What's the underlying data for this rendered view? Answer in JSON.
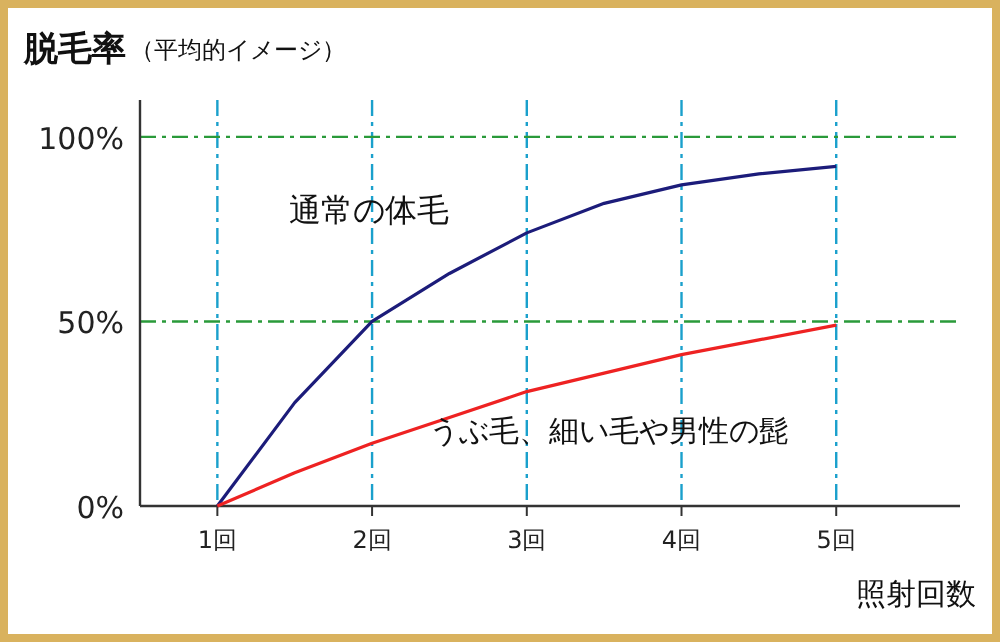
{
  "chart_data": {
    "type": "line",
    "ylabel": "脱毛率",
    "xlabel": "照射回数",
    "annotations": [
      "（平均的イメージ）"
    ],
    "xlim": [
      0.5,
      5.8
    ],
    "ylim": [
      0,
      110
    ],
    "xticks": [
      {
        "value": 1,
        "label": "1回"
      },
      {
        "value": 2,
        "label": "2回"
      },
      {
        "value": 3,
        "label": "3回"
      },
      {
        "value": 4,
        "label": "4回"
      },
      {
        "value": 5,
        "label": "5回"
      }
    ],
    "yticks": [
      {
        "value": 0,
        "label": "0%"
      },
      {
        "value": 50,
        "label": "50%"
      },
      {
        "value": 100,
        "label": "100%"
      }
    ],
    "grid": true,
    "legend": false,
    "marker": "none",
    "line_style": "solid",
    "x": [
      1,
      1.5,
      2,
      2.5,
      3,
      3.5,
      4,
      4.5,
      5
    ],
    "series": [
      {
        "name": "通常の体毛",
        "color": "#1c1c7a",
        "values": [
          0,
          28,
          50,
          63,
          74,
          82,
          87,
          90,
          92
        ]
      },
      {
        "name": "うぶ毛、細い毛や男性の髭",
        "color": "#ee2222",
        "values": [
          0,
          9,
          17,
          24,
          31,
          36,
          41,
          45,
          49
        ]
      }
    ]
  }
}
